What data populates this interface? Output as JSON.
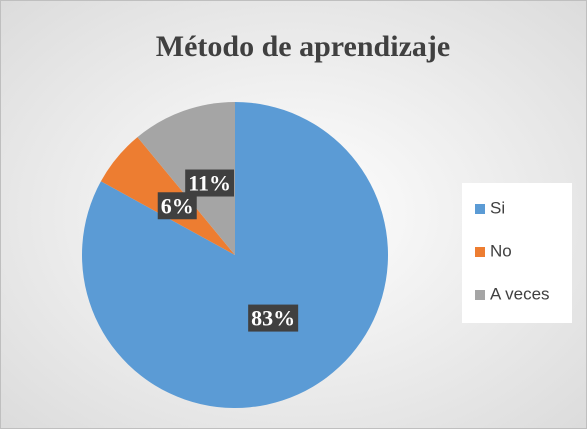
{
  "chart_data": {
    "type": "pie",
    "title": "Método de aprendizaje",
    "categories": [
      "Si",
      "No",
      "A veces"
    ],
    "values": [
      83,
      6,
      11
    ],
    "value_labels": [
      "83%",
      "6%",
      "11%"
    ],
    "colors": [
      "#5b9bd5",
      "#ed7d31",
      "#a5a5a5"
    ],
    "legend": "right"
  }
}
